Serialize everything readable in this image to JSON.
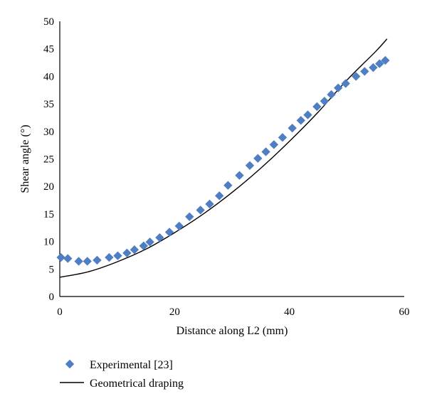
{
  "chart_data": {
    "type": "scatter",
    "title": "",
    "xlabel": "Distance along L2 (mm)",
    "ylabel": "Shear angle (°)",
    "xlim": [
      0,
      60
    ],
    "ylim": [
      0,
      50
    ],
    "x_ticks": [
      0,
      20,
      40,
      60
    ],
    "y_ticks": [
      0,
      5,
      10,
      15,
      20,
      25,
      30,
      35,
      40,
      45,
      50
    ],
    "grid": false,
    "legend_position": "bottom-left",
    "series": [
      {
        "name": "Experimental [23]",
        "type": "scatter",
        "marker": "diamond",
        "color": "#4f7fc2",
        "x": [
          0.2,
          1.4,
          3.3,
          4.8,
          6.5,
          8.6,
          10.1,
          11.7,
          13.0,
          14.6,
          15.7,
          17.4,
          19.1,
          20.8,
          22.6,
          24.5,
          26.1,
          27.8,
          29.3,
          31.3,
          33.1,
          34.5,
          35.9,
          37.3,
          38.8,
          40.5,
          42.0,
          43.2,
          44.8,
          46.1,
          47.3,
          48.5,
          49.8,
          51.6,
          53.1,
          54.6,
          55.7,
          56.7
        ],
        "y": [
          7.1,
          6.9,
          6.4,
          6.4,
          6.6,
          7.1,
          7.4,
          7.9,
          8.5,
          9.2,
          9.9,
          10.7,
          11.7,
          12.8,
          14.5,
          15.7,
          16.8,
          18.3,
          20.2,
          22.0,
          23.8,
          25.1,
          26.3,
          27.6,
          28.9,
          30.6,
          32.0,
          33.0,
          34.5,
          35.5,
          36.7,
          37.9,
          38.7,
          40.0,
          40.9,
          41.6,
          42.3,
          42.9
        ]
      },
      {
        "name": "Geometrical draping",
        "type": "line",
        "color": "#000000",
        "x": [
          0,
          5,
          10,
          15,
          20,
          25,
          30,
          35,
          40,
          45,
          50,
          55,
          57
        ],
        "y": [
          3.5,
          4.5,
          6.3,
          8.6,
          11.6,
          15.0,
          18.9,
          23.3,
          28.2,
          33.5,
          39.3,
          44.5,
          46.8
        ]
      }
    ]
  }
}
